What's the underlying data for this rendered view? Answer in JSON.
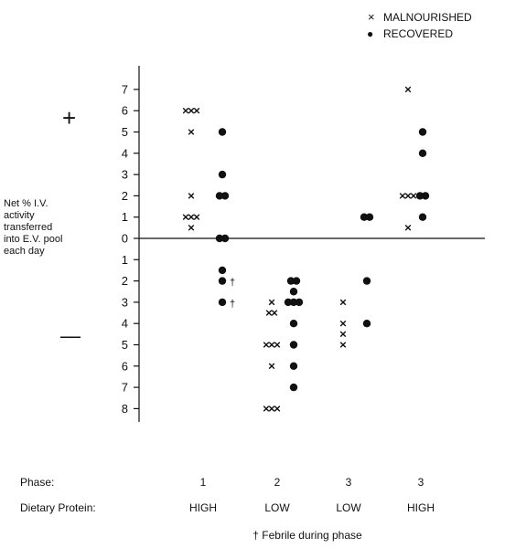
{
  "chart_data": {
    "type": "scatter",
    "ylabel_lines": [
      "Net % I.V.",
      "activity",
      "transferred",
      "into E.V. pool",
      "each day"
    ],
    "plus_sign": "+",
    "minus_sign": "—",
    "y_ticks_positive": [
      7,
      6,
      5,
      4,
      3,
      2,
      1
    ],
    "y_zero": 0,
    "y_ticks_negative": [
      1,
      2,
      3,
      4,
      5,
      6,
      7,
      8
    ],
    "ylim": [
      -8,
      7
    ],
    "legend": {
      "position": "top-right",
      "entries": [
        {
          "marker": "×",
          "label": "MALNOURISHED"
        },
        {
          "marker": "●",
          "label": "RECOVERED"
        }
      ]
    },
    "row_labels": [
      "Phase:",
      "Dietary Protein:"
    ],
    "groups": [
      {
        "phase": "1",
        "protein": "HIGH"
      },
      {
        "phase": "2",
        "protein": "LOW"
      },
      {
        "phase": "3",
        "protein": "LOW"
      },
      {
        "phase": "3",
        "protein": "HIGH"
      }
    ],
    "footnote": "† Febrile during phase",
    "series": [
      {
        "name": "MALNOURISHED",
        "marker": "x",
        "points": [
          {
            "group": 1,
            "y": 6
          },
          {
            "group": 1,
            "y": 6
          },
          {
            "group": 1,
            "y": 6
          },
          {
            "group": 1,
            "y": 5
          },
          {
            "group": 1,
            "y": 2
          },
          {
            "group": 1,
            "y": 1
          },
          {
            "group": 1,
            "y": 1
          },
          {
            "group": 1,
            "y": 1
          },
          {
            "group": 1,
            "y": 0.5
          },
          {
            "group": 2,
            "y": -3
          },
          {
            "group": 2,
            "y": -3.5
          },
          {
            "group": 2,
            "y": -3.5
          },
          {
            "group": 2,
            "y": -5
          },
          {
            "group": 2,
            "y": -5
          },
          {
            "group": 2,
            "y": -5
          },
          {
            "group": 2,
            "y": -6
          },
          {
            "group": 2,
            "y": -8
          },
          {
            "group": 2,
            "y": -8
          },
          {
            "group": 2,
            "y": -8
          },
          {
            "group": 3,
            "y": -3
          },
          {
            "group": 3,
            "y": -4
          },
          {
            "group": 3,
            "y": -4.5
          },
          {
            "group": 3,
            "y": -5
          },
          {
            "group": 4,
            "y": 7
          },
          {
            "group": 4,
            "y": 2
          },
          {
            "group": 4,
            "y": 2
          },
          {
            "group": 4,
            "y": 2
          },
          {
            "group": 4,
            "y": 0.5
          }
        ]
      },
      {
        "name": "RECOVERED",
        "marker": "dot",
        "points": [
          {
            "group": 1,
            "y": 5
          },
          {
            "group": 1,
            "y": 3
          },
          {
            "group": 1,
            "y": 2
          },
          {
            "group": 1,
            "y": 2
          },
          {
            "group": 1,
            "y": 0
          },
          {
            "group": 1,
            "y": 0
          },
          {
            "group": 1,
            "y": -1.5
          },
          {
            "group": 1,
            "y": -2,
            "febrile": true
          },
          {
            "group": 1,
            "y": -3,
            "febrile": true
          },
          {
            "group": 2,
            "y": -2
          },
          {
            "group": 2,
            "y": -2
          },
          {
            "group": 2,
            "y": -2.5
          },
          {
            "group": 2,
            "y": -3
          },
          {
            "group": 2,
            "y": -3
          },
          {
            "group": 2,
            "y": -3
          },
          {
            "group": 2,
            "y": -4
          },
          {
            "group": 2,
            "y": -5
          },
          {
            "group": 2,
            "y": -6
          },
          {
            "group": 2,
            "y": -7
          },
          {
            "group": 3,
            "y": 1
          },
          {
            "group": 3,
            "y": 1
          },
          {
            "group": 3,
            "y": -2
          },
          {
            "group": 3,
            "y": -4
          },
          {
            "group": 4,
            "y": 5
          },
          {
            "group": 4,
            "y": 4
          },
          {
            "group": 4,
            "y": 2
          },
          {
            "group": 4,
            "y": 2
          },
          {
            "group": 4,
            "y": 1
          }
        ]
      }
    ],
    "febrile_mark": "†"
  }
}
